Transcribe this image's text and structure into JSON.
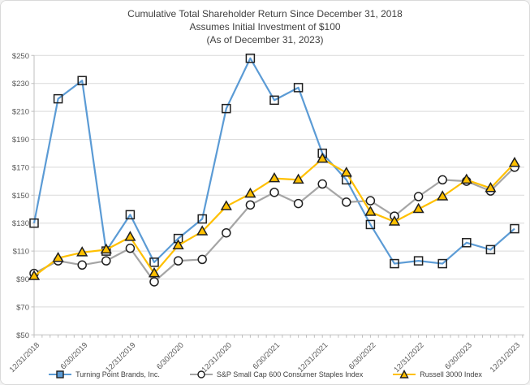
{
  "chart_data": {
    "type": "line",
    "title_lines": [
      "Cumulative Total Shareholder Return Since December 31, 2018",
      "Assumes Initial Investment of $100",
      "(As of December 31, 2023)"
    ],
    "y_tick_prefix": "$",
    "y_ticks": [
      50,
      70,
      90,
      110,
      130,
      150,
      170,
      190,
      210,
      230,
      250
    ],
    "ylim": [
      50,
      250
    ],
    "grid": "horizontal",
    "legend_position": "bottom",
    "x": [
      "12/31/2018",
      "3/31/2019",
      "6/30/2019",
      "9/30/2019",
      "12/31/2019",
      "3/31/2020",
      "6/30/2020",
      "9/30/2020",
      "12/31/2020",
      "3/31/2021",
      "6/30/2021",
      "9/30/2021",
      "12/31/2021",
      "3/31/2022",
      "6/30/2022",
      "9/30/2022",
      "12/31/2022",
      "3/31/2023",
      "6/30/2023",
      "9/30/2023",
      "12/31/2023"
    ],
    "x_labels_shown": [
      "12/31/2018",
      "6/30/2019",
      "12/31/2019",
      "6/30/2020",
      "12/31/2020",
      "6/30/2021",
      "12/31/2021",
      "6/30/2022",
      "12/31/2022",
      "6/30/2023",
      "12/31/2023"
    ],
    "series": [
      {
        "name": "Turning Point Brands, Inc.",
        "marker": "square",
        "color": "#5B9BD5",
        "values": [
          130,
          219,
          232,
          110,
          136,
          102,
          119,
          133,
          212,
          248,
          218,
          227,
          180,
          161,
          129,
          101,
          103,
          101,
          116,
          111,
          126
        ]
      },
      {
        "name": "S&P Small Cap 600 Consumer Staples Index",
        "marker": "circle",
        "color": "#A5A5A5",
        "values": [
          94,
          103,
          100,
          103,
          112,
          88,
          103,
          104,
          123,
          143,
          152,
          144,
          158,
          145,
          146,
          135,
          149,
          161,
          160,
          153,
          170
        ]
      },
      {
        "name": "Russell 3000 Index",
        "marker": "triangle",
        "color": "#FFC000",
        "values": [
          92,
          105,
          109,
          111,
          120,
          94,
          114,
          124,
          142,
          151,
          162,
          161,
          176,
          166,
          138,
          131,
          140,
          149,
          161,
          155,
          173
        ]
      }
    ],
    "colors": {
      "gridline": "#D9D9D9",
      "axis": "#BFBFBF",
      "marker_outline": "#1f1f1f",
      "tick_text": "#595959",
      "title_text": "#3F3F3F"
    }
  }
}
